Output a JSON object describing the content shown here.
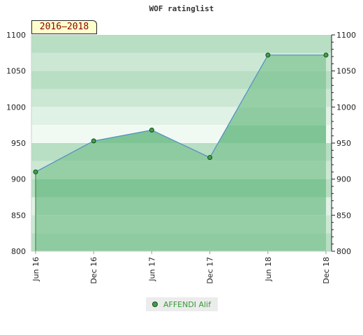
{
  "chart_data": {
    "type": "area",
    "title": "WOF ratinglist",
    "period_label": "2016–2018",
    "categories": [
      "Jun 16",
      "Dec 16",
      "Jun 17",
      "Dec 17",
      "Jun 18",
      "Dec 18"
    ],
    "series": [
      {
        "name": "AFFENDI Alif",
        "values": [
          910,
          953,
          968,
          930,
          1072,
          1072
        ]
      }
    ],
    "ylim": [
      800,
      1100
    ],
    "yticks": [
      800,
      850,
      900,
      950,
      1000,
      1050,
      1100
    ],
    "grid": true,
    "legend_position": "bottom",
    "colors": {
      "area_fill": "#7ec494",
      "line": "#4f8fc4",
      "marker_fill": "#3fa04a",
      "marker_stroke": "#1a4a1a",
      "band_colors": [
        "#b8dec3",
        "#cce8d4",
        "#e0f1e5",
        "#f1f9f3",
        "#b8dec3"
      ]
    }
  }
}
